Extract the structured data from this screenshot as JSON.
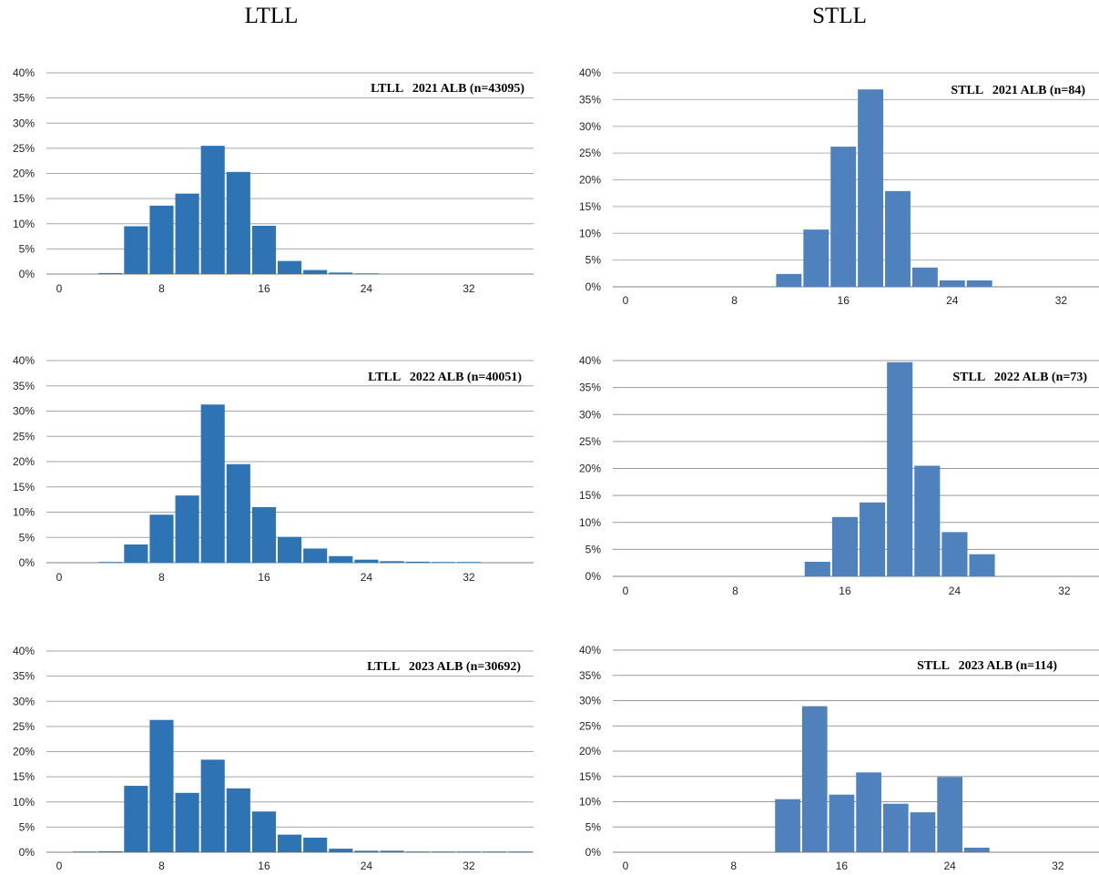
{
  "headers": {
    "left": "LTLL",
    "right": "STLL"
  },
  "chart_data": [
    {
      "type": "bar",
      "title": "LTLL   2021 ALB (n=43095)",
      "xlabel": "",
      "ylabel": "",
      "xlim": [
        0,
        37
      ],
      "ylim": [
        0,
        40
      ],
      "xticks": [
        0,
        8,
        16,
        24,
        32
      ],
      "yticks": [
        "0%",
        "5%",
        "10%",
        "15%",
        "20%",
        "25%",
        "30%",
        "35%",
        "40%"
      ],
      "bin_width": 2,
      "x": [
        2,
        4,
        6,
        8,
        10,
        12,
        14,
        16,
        18,
        20,
        22,
        24,
        26,
        28,
        30,
        32,
        34
      ],
      "values": [
        0,
        0.2,
        9.5,
        13.6,
        16.0,
        25.5,
        20.3,
        9.6,
        2.6,
        0.8,
        0.3,
        0.1,
        0,
        0,
        0,
        0,
        0
      ],
      "color": "#2e74b5"
    },
    {
      "type": "bar",
      "title": "STLL   2021 ALB (n=84)",
      "xlabel": "",
      "ylabel": "",
      "xlim": [
        0,
        35
      ],
      "ylim": [
        0,
        40
      ],
      "xticks": [
        0,
        8,
        16,
        24,
        32
      ],
      "yticks": [
        "0%",
        "5%",
        "10%",
        "15%",
        "20%",
        "25%",
        "30%",
        "35%",
        "40%"
      ],
      "bin_width": 2,
      "x": [
        12,
        14,
        16,
        18,
        20,
        22,
        24,
        26
      ],
      "values": [
        2.4,
        10.7,
        26.2,
        36.9,
        17.9,
        3.6,
        1.2,
        1.2
      ],
      "color": "#4f81bd"
    },
    {
      "type": "bar",
      "title": "LTLL   2022 ALB (n=40051)",
      "xlabel": "",
      "ylabel": "",
      "xlim": [
        0,
        37
      ],
      "ylim": [
        0,
        40
      ],
      "xticks": [
        0,
        8,
        16,
        24,
        32
      ],
      "yticks": [
        "0%",
        "5%",
        "10%",
        "15%",
        "20%",
        "25%",
        "30%",
        "35%",
        "40%"
      ],
      "bin_width": 2,
      "x": [
        2,
        4,
        6,
        8,
        10,
        12,
        14,
        16,
        18,
        20,
        22,
        24,
        26,
        28,
        30,
        32,
        34
      ],
      "values": [
        0,
        0.1,
        3.6,
        9.5,
        13.3,
        31.3,
        19.5,
        11.0,
        5.1,
        2.8,
        1.3,
        0.6,
        0.3,
        0.2,
        0.1,
        0.1,
        0
      ],
      "color": "#2e74b5"
    },
    {
      "type": "bar",
      "title": "STLL   2022 ALB (n=73)",
      "xlabel": "",
      "ylabel": "",
      "xlim": [
        0,
        35
      ],
      "ylim": [
        0,
        40
      ],
      "xticks": [
        0,
        8,
        16,
        24,
        32
      ],
      "yticks": [
        "0%",
        "5%",
        "10%",
        "15%",
        "20%",
        "25%",
        "30%",
        "35%",
        "40%"
      ],
      "bin_width": 2,
      "x": [
        14,
        16,
        18,
        20,
        22,
        24,
        26
      ],
      "values": [
        2.7,
        11.0,
        13.7,
        39.7,
        20.5,
        8.2,
        4.1
      ],
      "color": "#4f81bd"
    },
    {
      "type": "bar",
      "title": "LTLL   2023 ALB (n=30692)",
      "xlabel": "",
      "ylabel": "",
      "xlim": [
        0,
        37
      ],
      "ylim": [
        0,
        40
      ],
      "xticks": [
        0,
        8,
        16,
        24,
        32
      ],
      "yticks": [
        "0%",
        "5%",
        "10%",
        "15%",
        "20%",
        "25%",
        "30%",
        "35%",
        "40%"
      ],
      "bin_width": 2,
      "x": [
        2,
        4,
        6,
        8,
        10,
        12,
        14,
        16,
        18,
        20,
        22,
        24,
        26,
        28,
        30,
        32,
        34,
        36
      ],
      "values": [
        0.1,
        0.2,
        13.2,
        26.3,
        11.8,
        18.4,
        12.7,
        8.1,
        3.5,
        2.9,
        0.7,
        0.3,
        0.3,
        0.1,
        0.1,
        0.1,
        0.1,
        0.1
      ],
      "color": "#2e74b5"
    },
    {
      "type": "bar",
      "title": "STLL   2023 ALB (n=114)",
      "xlabel": "",
      "ylabel": "",
      "xlim": [
        0,
        35
      ],
      "ylim": [
        0,
        40
      ],
      "xticks": [
        0,
        8,
        16,
        24,
        32
      ],
      "yticks": [
        "0%",
        "5%",
        "10%",
        "15%",
        "20%",
        "25%",
        "30%",
        "35%",
        "40%"
      ],
      "bin_width": 2,
      "x": [
        12,
        14,
        16,
        18,
        20,
        22,
        24,
        26
      ],
      "values": [
        10.5,
        28.9,
        11.4,
        15.8,
        9.6,
        7.9,
        14.9,
        0.9
      ],
      "color": "#4f81bd"
    }
  ]
}
